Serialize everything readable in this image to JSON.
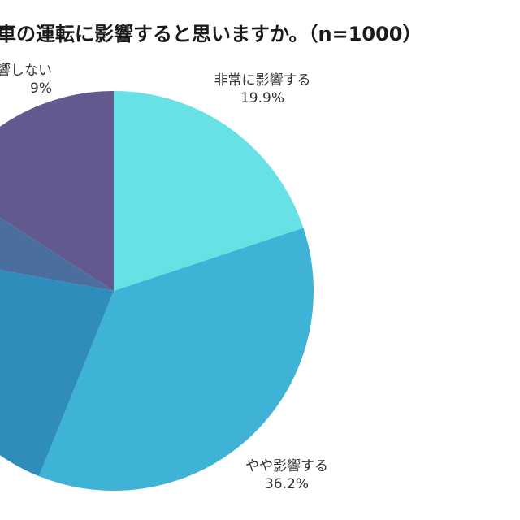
{
  "chart_data": {
    "type": "pie",
    "title": "…車の運転に影響すると思いますか。（n=1000）",
    "n": 1000,
    "start_angle": "12 o'clock, clockwise",
    "slices": [
      {
        "label": "非常に影響する",
        "value": 19.9,
        "value_label": "19.9%",
        "color": "#67E1E6"
      },
      {
        "label": "やや影響する",
        "value": 36.2,
        "value_label": "36.2%",
        "color": "#3FB3D5"
      },
      {
        "label": "",
        "value": 21.8,
        "value_label": "",
        "color": "#2E8DBA"
      },
      {
        "label": "",
        "value": 6.2,
        "value_label": "",
        "color": "#4A6E9E"
      },
      {
        "label": "…響しない",
        "value": 15.9,
        "value_label": "…9%",
        "color": "#625A8F"
      }
    ],
    "legend": "none (labels placed outside slices)"
  },
  "title": {
    "text": "車の運転に影響すると思いますか。（n=1000）"
  },
  "labels": {
    "strong": {
      "name": "非常に影響する",
      "pct": "19.9%"
    },
    "some": {
      "name": "やや影響する",
      "pct": "36.2%"
    },
    "none": {
      "name": "響しない",
      "pct": "9%"
    }
  }
}
